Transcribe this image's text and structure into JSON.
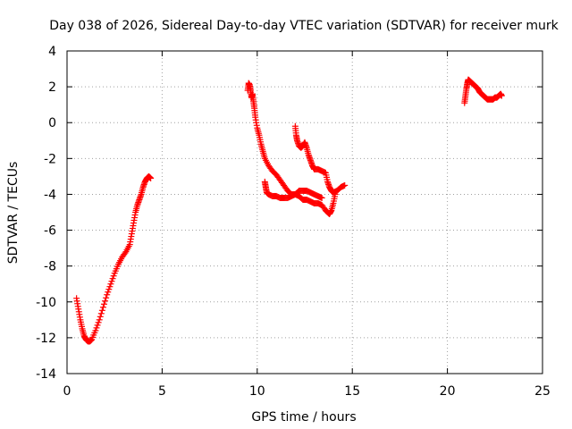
{
  "chart_data": {
    "type": "scatter",
    "title": "Day 038 of 2026, Sidereal Day-to-day VTEC variation (SDTVAR) for receiver murk",
    "xlabel": "GPS time / hours",
    "ylabel": "SDTVAR / TECUs",
    "xlim": [
      0,
      25
    ],
    "ylim": [
      -14,
      4
    ],
    "xticks": [
      0,
      5,
      10,
      15,
      20,
      25
    ],
    "yticks": [
      -14,
      -12,
      -10,
      -8,
      -6,
      -4,
      -2,
      0,
      2,
      4
    ],
    "grid": true,
    "marker": "+",
    "color": "#ff0000",
    "series": [
      {
        "name": "SDTVAR",
        "segments": [
          {
            "x": [
              0.5,
              0.6,
              0.7,
              0.8,
              0.9,
              1.0,
              1.1,
              1.2,
              1.3,
              1.5,
              1.7,
              1.9,
              2.1,
              2.3,
              2.5,
              2.7,
              2.9,
              3.1,
              3.3,
              3.4,
              3.5,
              3.6,
              3.7,
              3.8,
              3.9,
              4.0,
              4.1,
              4.2,
              4.3,
              4.4
            ],
            "y": [
              -9.8,
              -10.4,
              -11.0,
              -11.5,
              -11.9,
              -12.1,
              -12.2,
              -12.2,
              -12.1,
              -11.6,
              -11.0,
              -10.3,
              -9.6,
              -9.0,
              -8.4,
              -7.9,
              -7.5,
              -7.2,
              -6.8,
              -6.2,
              -5.6,
              -5.0,
              -4.6,
              -4.3,
              -4.0,
              -3.6,
              -3.3,
              -3.1,
              -3.0,
              -3.1
            ]
          },
          {
            "x": [
              9.5,
              9.55,
              9.6,
              9.65,
              9.7,
              9.75,
              9.8,
              9.85,
              9.9,
              10.0,
              10.1,
              10.2,
              10.3,
              10.4,
              10.6,
              10.8,
              11.0,
              11.2,
              11.4,
              11.6,
              11.8,
              12.0,
              12.2,
              12.4,
              12.6,
              12.8,
              13.0,
              13.2,
              13.4,
              13.6,
              13.7,
              13.8,
              13.9,
              14.0,
              14.1
            ],
            "y": [
              1.8,
              2.2,
              2.1,
              1.8,
              1.4,
              1.6,
              1.2,
              0.8,
              0.3,
              -0.3,
              -0.7,
              -1.2,
              -1.6,
              -2.0,
              -2.4,
              -2.7,
              -2.9,
              -3.2,
              -3.5,
              -3.8,
              -4.0,
              -4.0,
              -4.1,
              -4.3,
              -4.3,
              -4.4,
              -4.5,
              -4.5,
              -4.6,
              -4.9,
              -5.0,
              -5.1,
              -4.9,
              -4.5,
              -4.0
            ]
          },
          {
            "x": [
              10.4,
              10.45,
              10.5,
              10.6,
              10.8,
              11.0,
              11.2,
              11.4,
              11.6,
              11.8,
              12.0,
              12.2,
              12.4,
              12.6,
              12.8,
              13.0,
              13.2,
              13.4
            ],
            "y": [
              -3.3,
              -3.6,
              -3.9,
              -4.0,
              -4.1,
              -4.1,
              -4.2,
              -4.2,
              -4.2,
              -4.1,
              -4.0,
              -3.8,
              -3.8,
              -3.8,
              -3.9,
              -4.0,
              -4.1,
              -4.2
            ]
          },
          {
            "x": [
              12.0,
              12.05,
              12.1,
              12.2,
              12.3,
              12.4,
              12.5,
              12.6,
              12.7,
              12.8,
              12.9,
              13.0,
              13.2,
              13.4,
              13.6,
              13.7,
              13.8,
              13.9,
              14.0,
              14.2,
              14.4,
              14.6
            ],
            "y": [
              -0.2,
              -0.7,
              -1.0,
              -1.3,
              -1.4,
              -1.3,
              -1.1,
              -1.4,
              -1.8,
              -2.1,
              -2.4,
              -2.6,
              -2.6,
              -2.7,
              -2.8,
              -3.3,
              -3.6,
              -3.8,
              -3.9,
              -3.8,
              -3.6,
              -3.5
            ]
          },
          {
            "x": [
              20.9,
              20.95,
              21.0,
              21.05,
              21.1,
              21.2,
              21.3,
              21.4,
              21.5,
              21.6,
              21.7,
              21.8,
              21.9,
              22.0,
              22.1,
              22.2,
              22.3,
              22.4,
              22.5,
              22.6,
              22.7,
              22.8,
              22.85
            ],
            "y": [
              1.1,
              1.5,
              1.9,
              2.2,
              2.4,
              2.3,
              2.2,
              2.1,
              2.0,
              1.9,
              1.7,
              1.6,
              1.5,
              1.4,
              1.3,
              1.3,
              1.3,
              1.3,
              1.4,
              1.4,
              1.5,
              1.6,
              1.5
            ]
          }
        ]
      }
    ]
  }
}
